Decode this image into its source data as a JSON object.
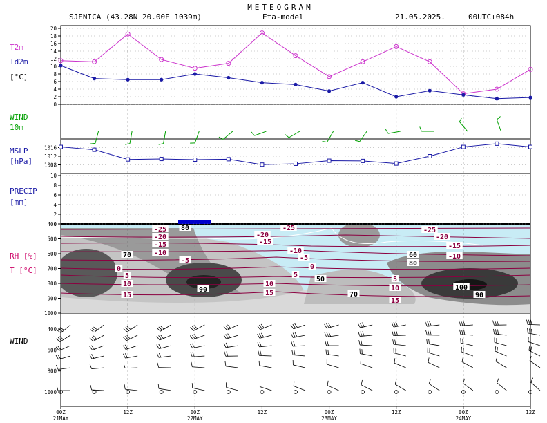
{
  "header": {
    "title": "METEOGRAM",
    "station": "SJENICA (43.28N 20.00E 1039m)",
    "model": "Eta-model",
    "date": "21.05.2025.",
    "run": "00UTC+084h"
  },
  "colors": {
    "t2m": "#cc33cc",
    "td2m": "#1a1aa6",
    "wind": "#00a000",
    "mslp": "#1a1aa6",
    "precip_label": "#1a1aa6",
    "rh_label": "#cc0066",
    "isotherm": "#8b0040",
    "cold_fill": "#c8ecf5",
    "bar": "#0000cc"
  },
  "time_axis": {
    "ticks": [
      "00Z",
      "12Z",
      "00Z",
      "12Z",
      "00Z",
      "12Z",
      "00Z",
      "12Z"
    ],
    "days": [
      "21MAY",
      "22MAY",
      "23MAY",
      "24MAY"
    ]
  },
  "panels": {
    "temperature": {
      "label1": "T2m",
      "label2": "Td2m",
      "label3": "[°C]",
      "ticks": [
        "0",
        "2",
        "4",
        "6",
        "8",
        "10",
        "12",
        "14",
        "16",
        "18",
        "20"
      ]
    },
    "wind10": {
      "label1": "WIND",
      "label2": "10m"
    },
    "mslp": {
      "label1": "MSLP",
      "label2": "[hPa]",
      "ticks": [
        "1008",
        "1012",
        "1016"
      ]
    },
    "precip": {
      "label1": "PRECIP",
      "label2": "[mm]",
      "ticks": [
        "0",
        "2",
        "4",
        "6",
        "8",
        "10"
      ]
    },
    "rh": {
      "label1": "RH [%]",
      "label2": "T [°C]",
      "ticks": [
        "400",
        "500",
        "600",
        "700",
        "800",
        "900",
        "1000"
      ]
    },
    "windprof": {
      "label1": "WIND",
      "ticks": [
        "400",
        "600",
        "800",
        "1000"
      ]
    }
  },
  "chart_data": {
    "type": "line",
    "x_hours": [
      0,
      6,
      12,
      18,
      24,
      30,
      36,
      42,
      48,
      54,
      60,
      66,
      72,
      78,
      84
    ],
    "t2m": [
      11.5,
      11.2,
      18.5,
      11.8,
      9.5,
      10.8,
      18.8,
      12.8,
      7.3,
      11.2,
      15.2,
      11.2,
      2.8,
      4.0,
      9.2
    ],
    "td2m": [
      10.2,
      6.8,
      6.5,
      6.5,
      8.0,
      7.0,
      5.7,
      5.2,
      3.5,
      5.7,
      2.0,
      3.6,
      2.5,
      1.5,
      1.8
    ],
    "mslp": [
      1016.3,
      1015.0,
      1010.5,
      1010.7,
      1010.4,
      1010.6,
      1008.1,
      1008.5,
      1009.9,
      1009.8,
      1008.6,
      1012.0,
      1016.3,
      1017.8,
      1016.3
    ],
    "temp_ylim": [
      0,
      20
    ],
    "mslp_ylim": [
      1004,
      1020
    ],
    "precip_ylim": [
      0,
      10
    ],
    "precip": [
      0,
      0,
      0,
      0,
      0,
      0,
      0,
      0,
      0,
      0,
      0,
      0,
      0,
      0,
      0
    ],
    "isotherm_labels": [
      "-25",
      "-20",
      "-15",
      "-10",
      "-5",
      "0",
      "5",
      "10",
      "15"
    ],
    "rh_labels": [
      "80",
      "70",
      "90",
      "50",
      "70",
      "60",
      "80",
      "100",
      "90"
    ]
  }
}
